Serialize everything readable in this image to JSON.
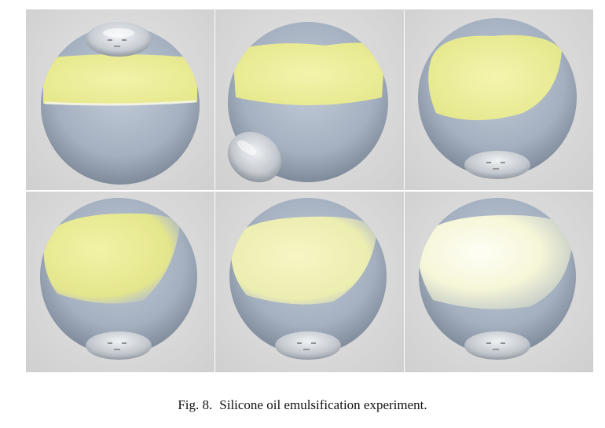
{
  "caption": {
    "label": "Fig. 8.",
    "text": "Silicone oil emulsification experiment."
  },
  "panels": [
    {
      "id": "top-left",
      "oil_appearance": "yellow band, sharp bottom edge",
      "small_droplet": "top"
    },
    {
      "id": "top-middle",
      "oil_appearance": "yellow band",
      "small_droplet": "lower-left"
    },
    {
      "id": "top-right",
      "oil_appearance": "yellow blob",
      "small_droplet": "bottom"
    },
    {
      "id": "bottom-left",
      "oil_appearance": "yellow, diffusing",
      "small_droplet": "bottom"
    },
    {
      "id": "bottom-middle",
      "oil_appearance": "pale yellow, diffusing",
      "small_droplet": "bottom"
    },
    {
      "id": "bottom-right",
      "oil_appearance": "whitish, emulsified",
      "small_droplet": "bottom"
    }
  ],
  "colors": {
    "sphere": "#a9b5c4",
    "oil_yellow": "#eef09a",
    "oil_white": "#fbfbe8",
    "background": "#d9d9d9"
  }
}
